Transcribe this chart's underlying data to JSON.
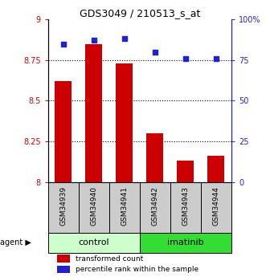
{
  "title": "GDS3049 / 210513_s_at",
  "categories": [
    "GSM34939",
    "GSM34940",
    "GSM34941",
    "GSM34942",
    "GSM34943",
    "GSM34944"
  ],
  "bar_values": [
    8.62,
    8.85,
    8.73,
    8.3,
    8.13,
    8.16
  ],
  "percentile_values": [
    85,
    87,
    88,
    80,
    76,
    76
  ],
  "ylim_left": [
    8.0,
    9.0
  ],
  "ylim_right": [
    0,
    100
  ],
  "yticks_left": [
    8.0,
    8.25,
    8.5,
    8.75,
    9.0
  ],
  "ytick_labels_left": [
    "8",
    "8.25",
    "8.5",
    "8.75",
    "9"
  ],
  "yticks_right": [
    0,
    25,
    50,
    75,
    100
  ],
  "ytick_labels_right": [
    "0",
    "25",
    "50",
    "75",
    "100%"
  ],
  "bar_color": "#cc0000",
  "dot_color": "#2222cc",
  "group1_label": "control",
  "group2_label": "imatinib",
  "group1_color": "#ccffcc",
  "group2_color": "#33dd33",
  "agent_label": "agent",
  "legend1": "transformed count",
  "legend2": "percentile rank within the sample",
  "bar_width": 0.55,
  "dotted_ticks": [
    8.25,
    8.5,
    8.75
  ],
  "xtick_bg_color": "#cccccc",
  "title_fontsize": 9,
  "tick_fontsize": 7,
  "legend_fontsize": 6.5,
  "cat_fontsize": 6.5,
  "group_fontsize": 8
}
